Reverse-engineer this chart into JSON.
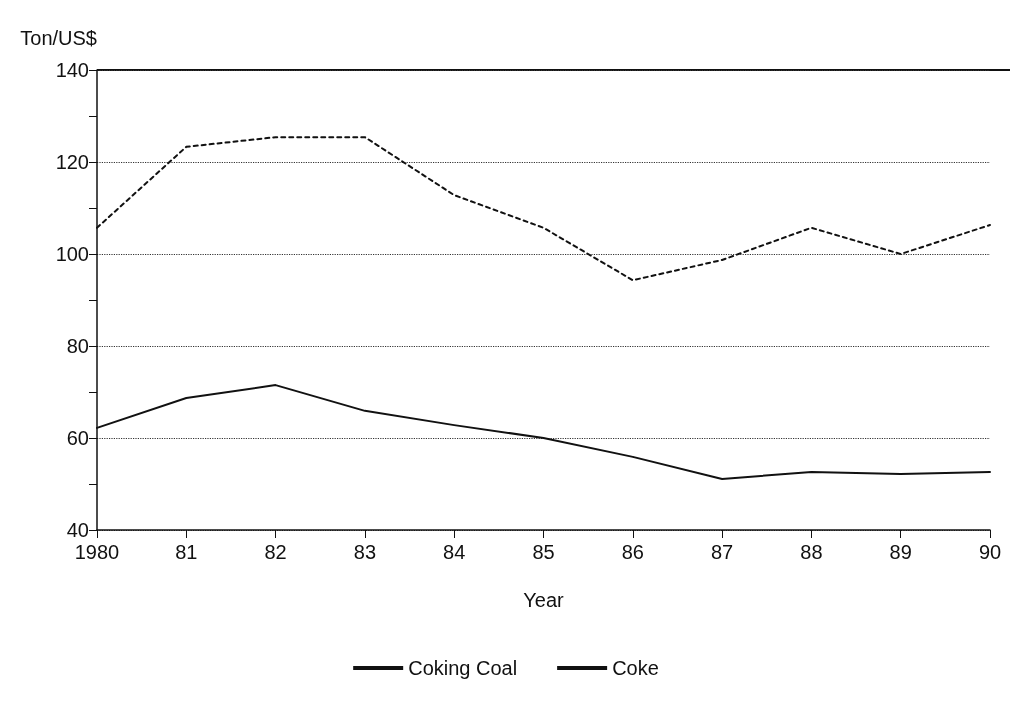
{
  "chart_data": {
    "type": "line",
    "ylabel": "Ton/US$",
    "xlabel": "Year",
    "x": [
      1980,
      1981,
      1982,
      1983,
      1984,
      1985,
      1986,
      1987,
      1988,
      1989,
      1990
    ],
    "series": [
      {
        "name": "Coking Coal",
        "color": "#111111",
        "line_style": "solid",
        "values": [
          62.2,
          68.7,
          71.5,
          65.9,
          62.8,
          60,
          55.9,
          51.1,
          52.6,
          52.2,
          52.6
        ]
      },
      {
        "name": "Coke",
        "color": "#111111",
        "line_style": "dashed",
        "values": [
          105.7,
          123.3,
          125.4,
          125.4,
          112.8,
          105.7,
          94.3,
          98.7,
          105.7,
          100,
          106.3
        ]
      }
    ],
    "xlim": [
      1980,
      1990
    ],
    "xticks": [
      1980,
      {
        "value": 1981,
        "label": "81"
      },
      {
        "value": 1982,
        "label": "82"
      },
      {
        "value": 1983,
        "label": "83"
      },
      {
        "value": 1984,
        "label": "84"
      },
      {
        "value": 1985,
        "label": "85"
      },
      {
        "value": 1986,
        "label": "86"
      },
      {
        "value": 1987,
        "label": "87"
      },
      {
        "value": 1988,
        "label": "88"
      },
      {
        "value": 1989,
        "label": "89"
      },
      {
        "value": 1990,
        "label": "90"
      }
    ],
    "ylim": [
      40,
      140
    ],
    "yticks": [
      40,
      {
        "value": 50,
        "label": null
      },
      60,
      {
        "value": 70,
        "label": null
      },
      80,
      {
        "value": 90,
        "label": null
      },
      100,
      {
        "value": 110,
        "label": null
      },
      120,
      {
        "value": 130,
        "label": null
      },
      140
    ],
    "grid": "y",
    "legend": "bottom",
    "marker": "none"
  }
}
